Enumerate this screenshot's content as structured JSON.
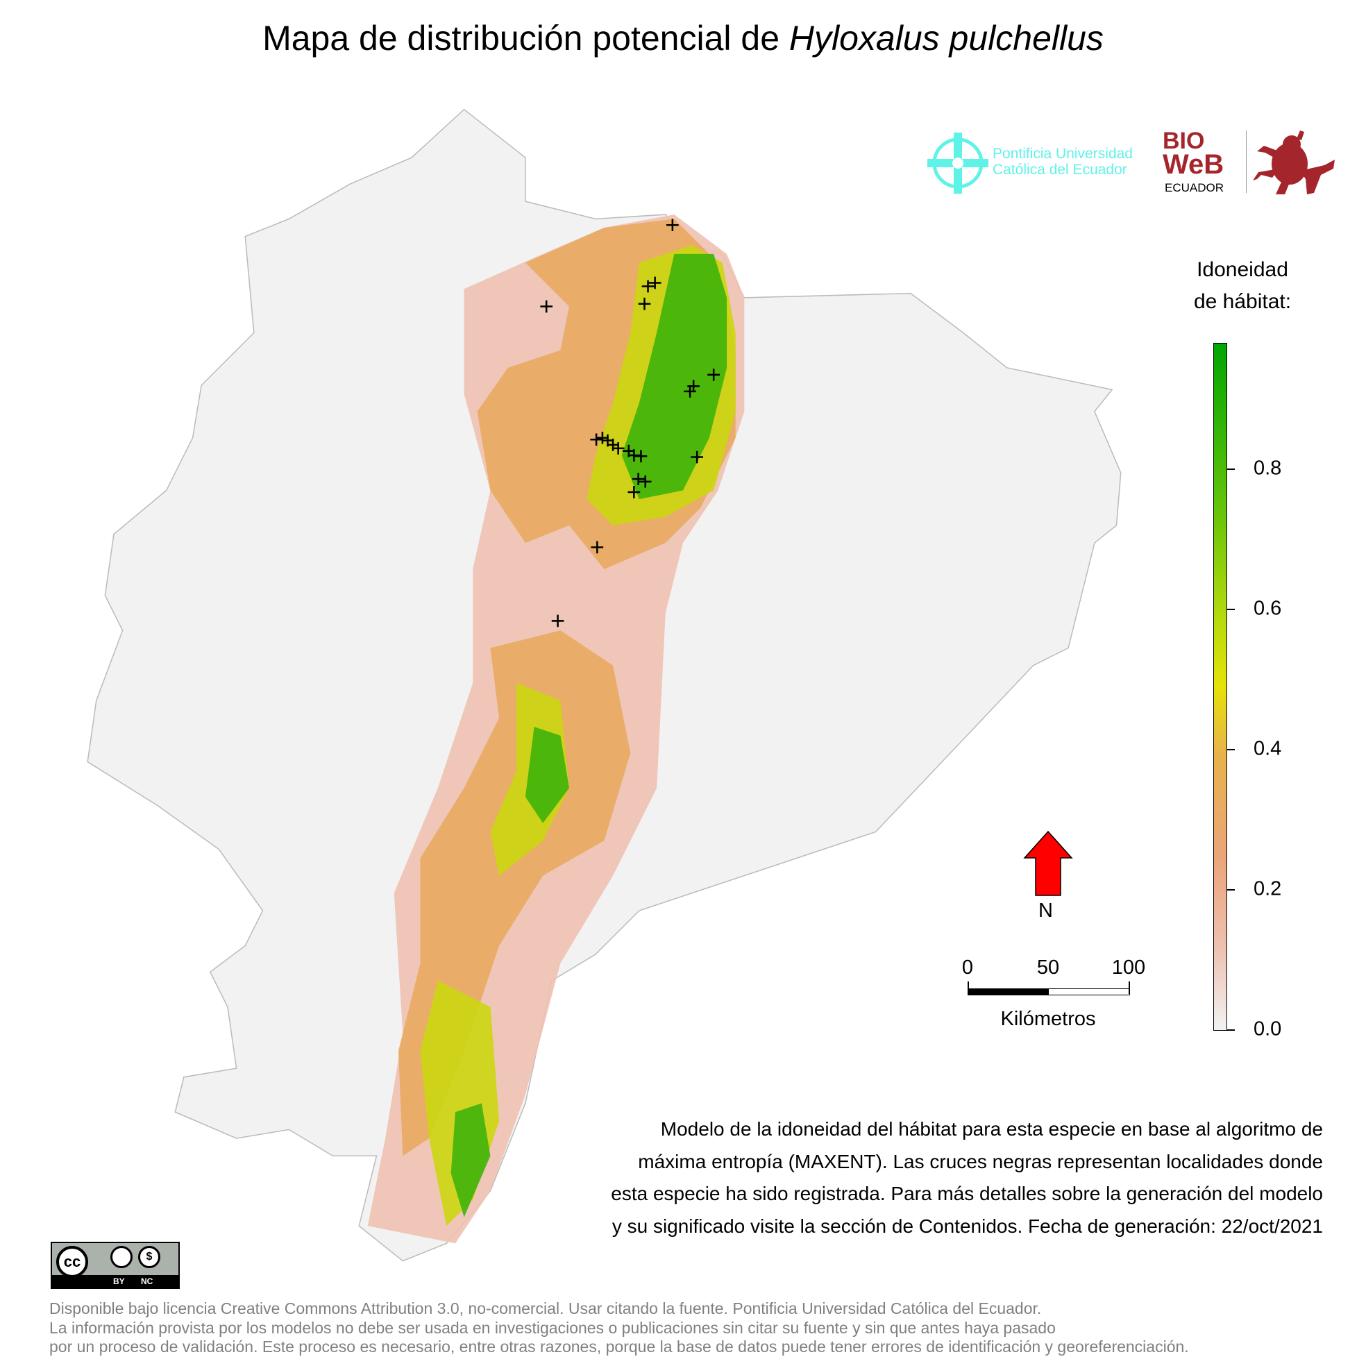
{
  "title": {
    "prefix": "Mapa de distribución potencial de ",
    "species": "Hyloxalus pulchellus"
  },
  "logos": {
    "puce": {
      "line1": "Pontificia Universidad",
      "line2": "Católica del Ecuador",
      "color": "#5ff3e8"
    },
    "bioweb": {
      "line1": "BIO",
      "line2": "WeB",
      "line3": "ECUADOR",
      "color": "#a4262c"
    }
  },
  "legend": {
    "title_line1": "Idoneidad",
    "title_line2": "de hábitat:",
    "ticks": [
      "0.0",
      "0.2",
      "0.4",
      "0.6",
      "0.8"
    ],
    "colors": [
      "#f2f2f2",
      "#eba57a",
      "#e8b24a",
      "#e6e20a",
      "#69c50a",
      "#00a600"
    ]
  },
  "north": {
    "label": "N",
    "color": "#ff0000"
  },
  "scale_bar": {
    "labels": [
      "0",
      "50",
      "100"
    ],
    "unit": "Kilómetros"
  },
  "description": {
    "lines": [
      "Modelo de la idoneidad del hábitat para esta especie en base al algoritmo de",
      "máxima entropía (MAXENT). Las cruces negras representan localidades donde",
      "esta especie ha sido registrada. Para más detalles sobre la generación del modelo",
      "y su significado visite la sección de Contenidos. Fecha de generación: 22/oct/2021"
    ]
  },
  "license_badge": {
    "by": "BY",
    "nc": "NC",
    "cc": "cc"
  },
  "footer": {
    "lines": [
      "Disponible bajo licencia Creative Commons Attribution 3.0, no-comercial. Usar citando la fuente. Pontificia Universidad Católica del Ecuador.",
      "La información provista por los modelos no debe ser usada en investigaciones o publicaciones sin citar su fuente y sin que antes haya pasado",
      "por un proceso de validación. Este proceso es necesario, entre otras razones, porque la base de datos puede tener errores de identificación y georeferenciación."
    ]
  }
}
